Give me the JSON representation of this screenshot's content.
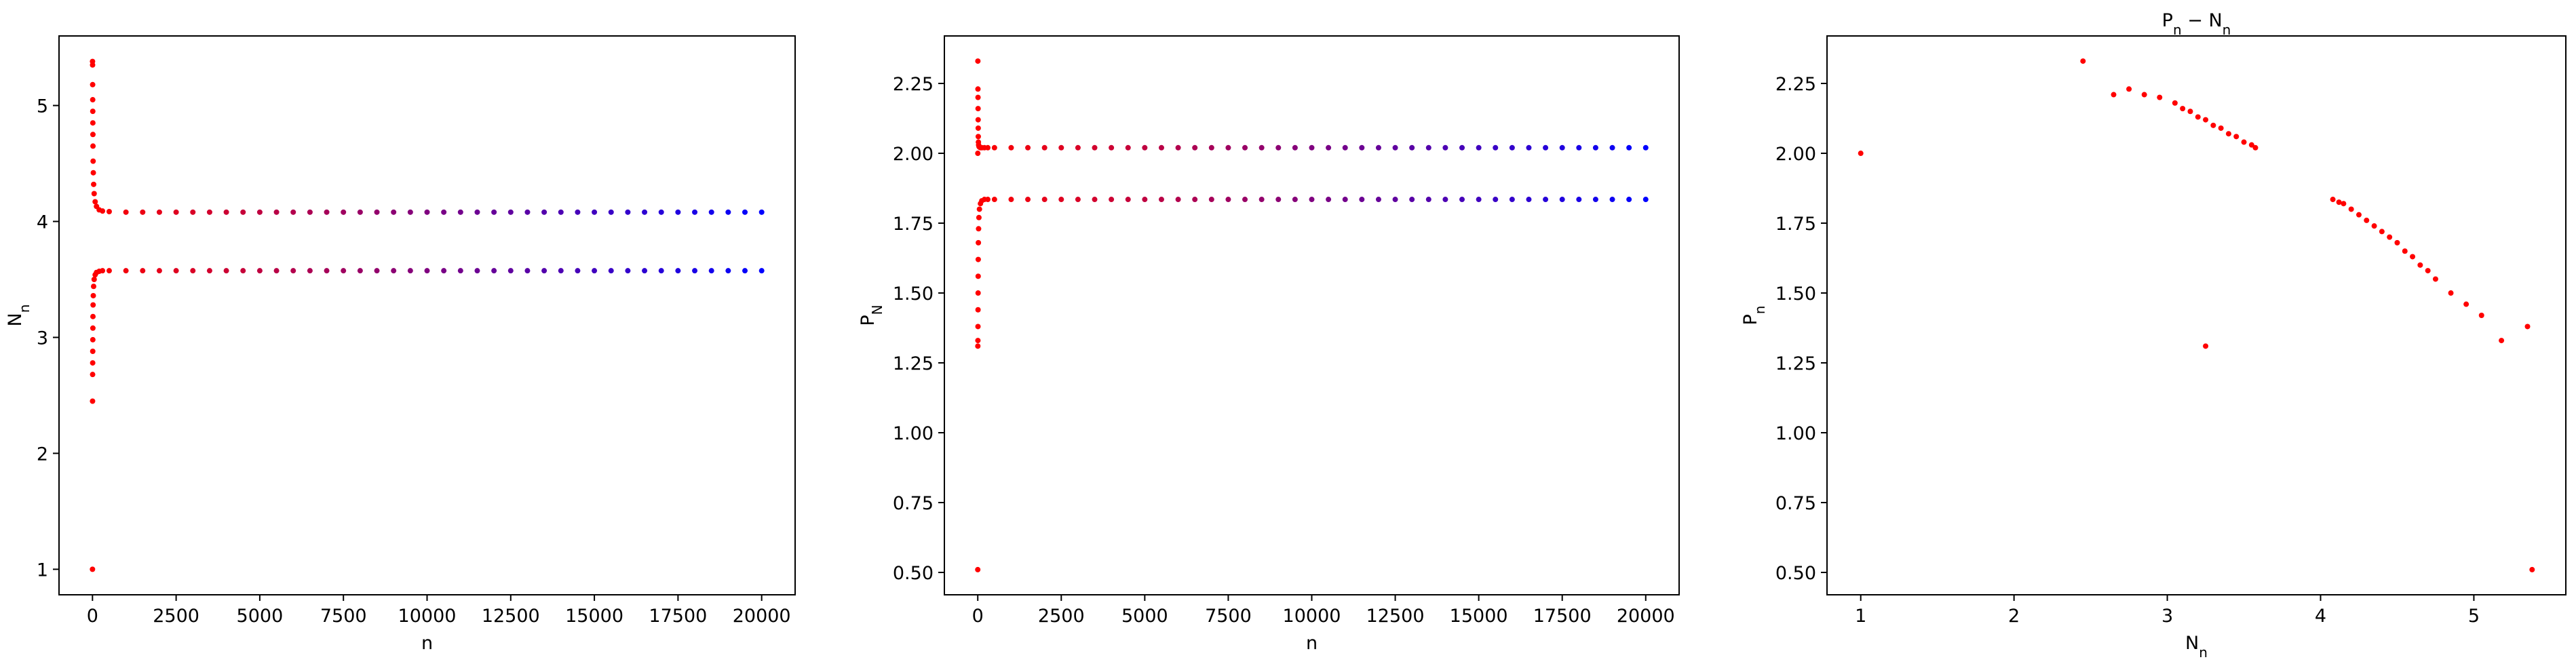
{
  "chart_data": [
    {
      "type": "scatter",
      "xlabel": "n",
      "ylabel": [
        {
          "text": "N"
        },
        {
          "text": "n",
          "sub": true
        }
      ],
      "xlim": [
        -1000,
        21000
      ],
      "ylim": [
        0.78,
        5.6
      ],
      "xticks": [
        0,
        2500,
        5000,
        7500,
        10000,
        12500,
        15000,
        17500,
        20000
      ],
      "yticks": [
        1,
        2,
        3,
        4,
        5
      ],
      "colors": [
        "#ff0000",
        "#0000ff"
      ],
      "series": [
        {
          "x": [
            1,
            3,
            5,
            7,
            9,
            11,
            13,
            15,
            19,
            25,
            35,
            50,
            80,
            120,
            200,
            300,
            500,
            1000,
            1500,
            2000,
            2500,
            3000,
            3500,
            4000,
            4500,
            5000,
            5500,
            6000,
            6500,
            7000,
            7500,
            8000,
            8500,
            9000,
            9500,
            10000,
            10500,
            11000,
            11500,
            12000,
            12500,
            13000,
            13500,
            14000,
            14500,
            15000,
            15500,
            16000,
            16500,
            17000,
            17500,
            18000,
            18500,
            19000,
            19500,
            20000
          ],
          "values": [
            5.38,
            5.35,
            5.18,
            5.05,
            4.95,
            4.85,
            4.75,
            4.65,
            4.52,
            4.42,
            4.32,
            4.24,
            4.17,
            4.13,
            4.1,
            4.09,
            4.085,
            4.08,
            4.08,
            4.08,
            4.08,
            4.08,
            4.08,
            4.08,
            4.08,
            4.08,
            4.08,
            4.08,
            4.08,
            4.08,
            4.08,
            4.08,
            4.08,
            4.08,
            4.08,
            4.08,
            4.08,
            4.08,
            4.08,
            4.08,
            4.08,
            4.08,
            4.08,
            4.08,
            4.08,
            4.08,
            4.08,
            4.08,
            4.08,
            4.08,
            4.08,
            4.08,
            4.08,
            4.08,
            4.08,
            4.08
          ]
        },
        {
          "x": [
            0,
            2,
            4,
            6,
            8,
            10,
            12,
            14,
            18,
            24,
            34,
            50,
            80,
            120,
            200,
            300,
            500,
            1000,
            1500,
            2000,
            2500,
            3000,
            3500,
            4000,
            4500,
            5000,
            5500,
            6000,
            6500,
            7000,
            7500,
            8000,
            8500,
            9000,
            9500,
            10000,
            10500,
            11000,
            11500,
            12000,
            12500,
            13000,
            13500,
            14000,
            14500,
            15000,
            15500,
            16000,
            16500,
            17000,
            17500,
            18000,
            18500,
            19000,
            19500,
            20000
          ],
          "values": [
            1.0,
            2.45,
            2.68,
            2.78,
            2.88,
            2.98,
            3.08,
            3.18,
            3.28,
            3.36,
            3.44,
            3.5,
            3.54,
            3.56,
            3.57,
            3.575,
            3.575,
            3.575,
            3.575,
            3.575,
            3.575,
            3.575,
            3.575,
            3.575,
            3.575,
            3.575,
            3.575,
            3.575,
            3.575,
            3.575,
            3.575,
            3.575,
            3.575,
            3.575,
            3.575,
            3.575,
            3.575,
            3.575,
            3.575,
            3.575,
            3.575,
            3.575,
            3.575,
            3.575,
            3.575,
            3.575,
            3.575,
            3.575,
            3.575,
            3.575,
            3.575,
            3.575,
            3.575,
            3.575,
            3.575,
            3.575
          ]
        }
      ]
    },
    {
      "type": "scatter",
      "xlabel": "n",
      "ylabel": [
        {
          "text": "P"
        },
        {
          "text": "N",
          "sub": true
        }
      ],
      "xlim": [
        -1000,
        21000
      ],
      "ylim": [
        0.42,
        2.42
      ],
      "xticks": [
        0,
        2500,
        5000,
        7500,
        10000,
        12500,
        15000,
        17500,
        20000
      ],
      "yticks": [
        {
          "value": 0.5,
          "label": "0.50"
        },
        0.75,
        {
          "value": 1,
          "label": "1.00"
        },
        1.25,
        {
          "value": 1.5,
          "label": "1.50"
        },
        1.75,
        {
          "value": 2,
          "label": "2.00"
        },
        2.25
      ],
      "colors": [
        "#ff0000",
        "#0000ff"
      ],
      "series": [
        {
          "x": [
            1,
            3,
            5,
            7,
            9,
            11,
            13,
            15,
            19,
            25,
            35,
            50,
            80,
            120,
            200,
            300,
            500,
            1000,
            1500,
            2000,
            2500,
            3000,
            3500,
            4000,
            4500,
            5000,
            5500,
            6000,
            6500,
            7000,
            7500,
            8000,
            8500,
            9000,
            9500,
            10000,
            10500,
            11000,
            11500,
            12000,
            12500,
            13000,
            13500,
            14000,
            14500,
            15000,
            15500,
            16000,
            16500,
            17000,
            17500,
            18000,
            18500,
            19000,
            19500,
            20000
          ],
          "values": [
            2.0,
            2.33,
            2.23,
            2.2,
            2.16,
            2.12,
            2.09,
            2.06,
            2.04,
            2.03,
            2.025,
            2.022,
            2.02,
            2.02,
            2.02,
            2.02,
            2.02,
            2.02,
            2.02,
            2.02,
            2.02,
            2.02,
            2.02,
            2.02,
            2.02,
            2.02,
            2.02,
            2.02,
            2.02,
            2.02,
            2.02,
            2.02,
            2.02,
            2.02,
            2.02,
            2.02,
            2.02,
            2.02,
            2.02,
            2.02,
            2.02,
            2.02,
            2.02,
            2.02,
            2.02,
            2.02,
            2.02,
            2.02,
            2.02,
            2.02,
            2.02,
            2.02,
            2.02,
            2.02,
            2.02,
            2.02
          ]
        },
        {
          "x": [
            0,
            2,
            4,
            6,
            8,
            10,
            12,
            14,
            18,
            24,
            34,
            50,
            80,
            120,
            200,
            300,
            500,
            1000,
            1500,
            2000,
            2500,
            3000,
            3500,
            4000,
            4500,
            5000,
            5500,
            6000,
            6500,
            7000,
            7500,
            8000,
            8500,
            9000,
            9500,
            10000,
            10500,
            11000,
            11500,
            12000,
            12500,
            13000,
            13500,
            14000,
            14500,
            15000,
            15500,
            16000,
            16500,
            17000,
            17500,
            18000,
            18500,
            19000,
            19500,
            20000
          ],
          "values": [
            0.51,
            1.31,
            1.33,
            1.38,
            1.44,
            1.5,
            1.56,
            1.62,
            1.68,
            1.73,
            1.77,
            1.8,
            1.82,
            1.83,
            1.835,
            1.835,
            1.835,
            1.835,
            1.835,
            1.835,
            1.835,
            1.835,
            1.835,
            1.835,
            1.835,
            1.835,
            1.835,
            1.835,
            1.835,
            1.835,
            1.835,
            1.835,
            1.835,
            1.835,
            1.835,
            1.835,
            1.835,
            1.835,
            1.835,
            1.835,
            1.835,
            1.835,
            1.835,
            1.835,
            1.835,
            1.835,
            1.835,
            1.835,
            1.835,
            1.835,
            1.835,
            1.835,
            1.835,
            1.835,
            1.835,
            1.835
          ]
        }
      ]
    },
    {
      "type": "scatter",
      "title": [
        {
          "text": "P"
        },
        {
          "text": "n",
          "sub": true
        },
        {
          "text": " − "
        },
        {
          "text": "N"
        },
        {
          "text": "n",
          "sub": true
        }
      ],
      "xlabel": [
        {
          "text": "N"
        },
        {
          "text": "n",
          "sub": true
        }
      ],
      "ylabel": [
        {
          "text": "P"
        },
        {
          "text": "n",
          "sub": true
        }
      ],
      "xlim": [
        0.78,
        5.6
      ],
      "ylim": [
        0.42,
        2.42
      ],
      "xticks": [
        1,
        2,
        3,
        4,
        5
      ],
      "yticks": [
        {
          "value": 0.5,
          "label": "0.50"
        },
        0.75,
        {
          "value": 1,
          "label": "1.00"
        },
        1.25,
        {
          "value": 1.5,
          "label": "1.50"
        },
        1.75,
        {
          "value": 2,
          "label": "2.00"
        },
        2.25
      ],
      "color": "#ff0000",
      "series": [
        {
          "x": [
            1,
            2.45,
            3.25,
            5.38,
            5.35,
            5.18,
            5.05,
            4.95,
            4.85,
            2.65,
            2.75,
            2.85,
            2.95,
            3.05,
            3.1,
            3.15,
            3.2,
            3.25,
            3.3,
            3.35,
            3.4,
            3.45,
            3.5,
            3.55,
            3.575,
            4.75,
            4.7,
            4.65,
            4.6,
            4.55,
            4.5,
            4.45,
            4.4,
            4.35,
            4.3,
            4.25,
            4.2,
            4.15,
            4.12,
            4.08
          ],
          "values": [
            2.0,
            2.33,
            1.31,
            0.51,
            1.38,
            1.33,
            1.42,
            1.46,
            1.5,
            2.21,
            2.23,
            2.21,
            2.2,
            2.18,
            2.16,
            2.15,
            2.13,
            2.12,
            2.1,
            2.09,
            2.07,
            2.06,
            2.04,
            2.03,
            2.02,
            1.55,
            1.58,
            1.6,
            1.63,
            1.65,
            1.68,
            1.7,
            1.72,
            1.74,
            1.76,
            1.78,
            1.8,
            1.82,
            1.825,
            1.835
          ]
        }
      ]
    }
  ]
}
